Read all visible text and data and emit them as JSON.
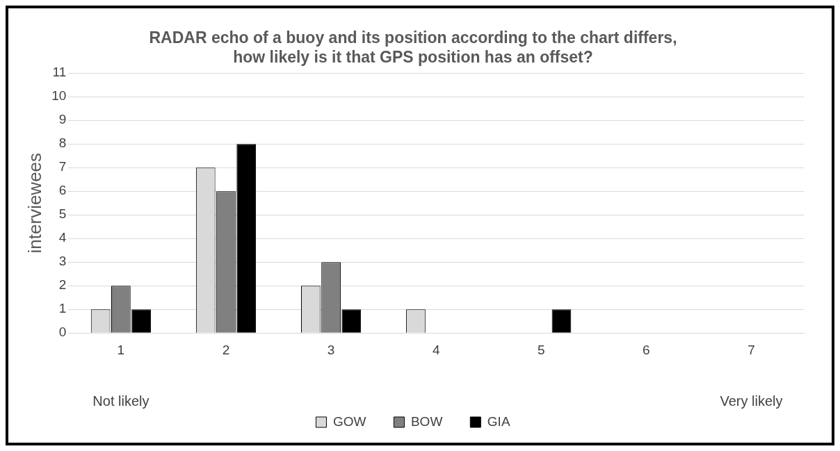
{
  "chart_data": {
    "type": "bar",
    "title": "RADAR echo of a buoy and its position according to the chart differs, how likely is it that GPS position has an offset?",
    "ylabel": "interviewees",
    "categories": [
      "1",
      "2",
      "3",
      "4",
      "5",
      "6",
      "7"
    ],
    "series": [
      {
        "name": "GOW",
        "color": "#d9d9d9",
        "values": [
          1,
          7,
          2,
          1,
          0,
          0,
          0
        ]
      },
      {
        "name": "BOW",
        "color": "#808080",
        "values": [
          2,
          6,
          3,
          0,
          0,
          0,
          0
        ]
      },
      {
        "name": "GIA",
        "color": "#000000",
        "values": [
          1,
          8,
          1,
          0,
          1,
          0,
          0
        ]
      }
    ],
    "ylim": [
      0,
      11
    ],
    "yticks": [
      0,
      1,
      2,
      3,
      4,
      5,
      6,
      7,
      8,
      9,
      10,
      11
    ],
    "grid": "y",
    "legend": "bottom",
    "annotations": [
      "Not likely",
      "Very likely"
    ]
  }
}
